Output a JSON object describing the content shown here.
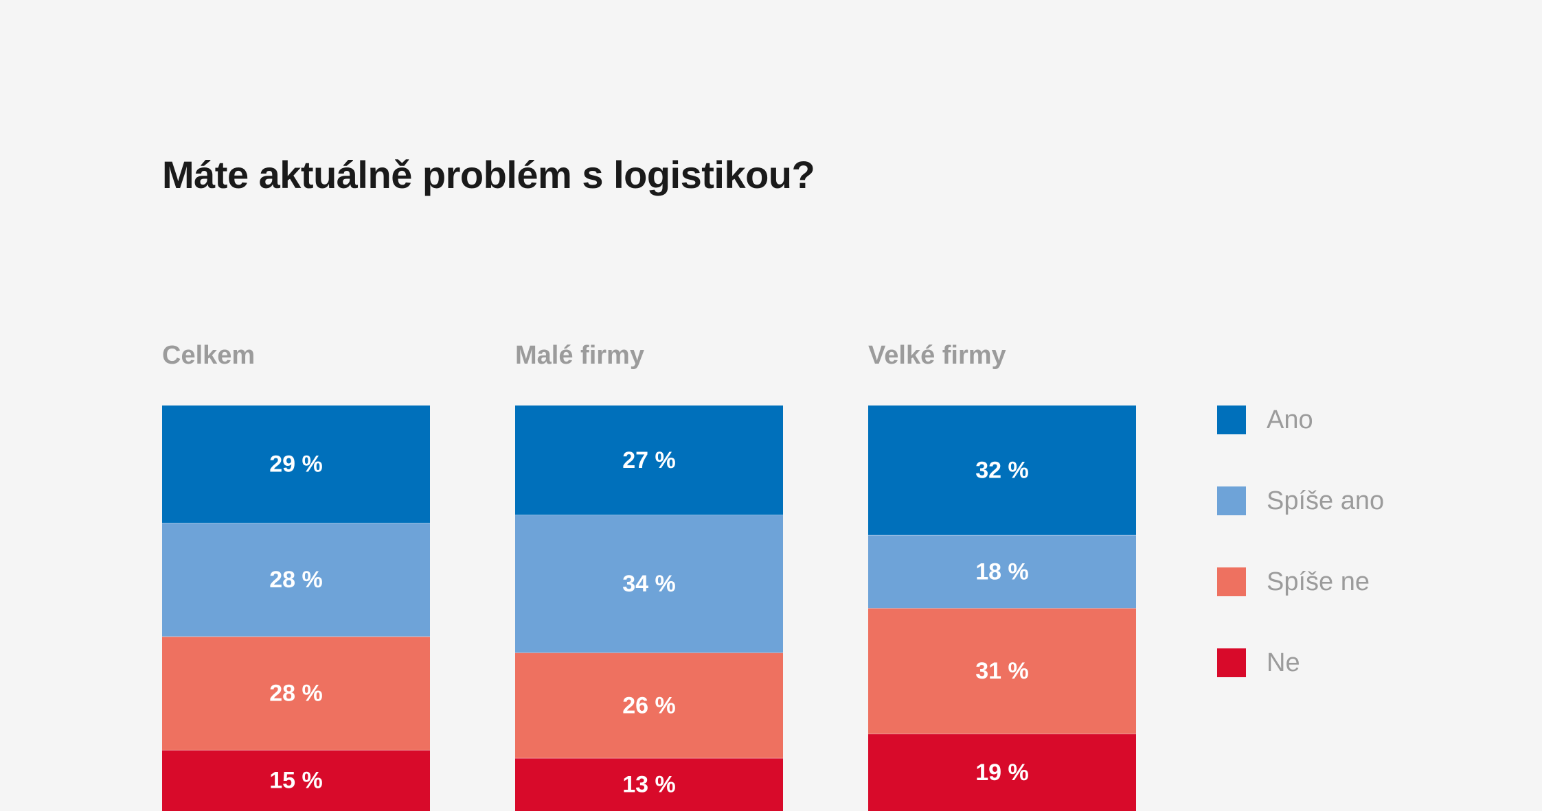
{
  "chart_data": {
    "type": "bar",
    "stacked": true,
    "normalized": true,
    "title": "Máte aktuálně problém s logistikou?",
    "categories": [
      "Celkem",
      "Malé firmy",
      "Velké firmy"
    ],
    "series": [
      {
        "name": "Ano",
        "color": "#0070bb",
        "values": [
          29,
          27,
          32
        ]
      },
      {
        "name": "Spíše ano",
        "color": "#6ea3d8",
        "values": [
          28,
          34,
          18
        ]
      },
      {
        "name": "Spíše ne",
        "color": "#ee7160",
        "values": [
          28,
          26,
          31
        ]
      },
      {
        "name": "Ne",
        "color": "#d80a2a",
        "values": [
          15,
          13,
          19
        ]
      }
    ],
    "value_suffix": " %",
    "legend_position": "right",
    "grid": false
  }
}
